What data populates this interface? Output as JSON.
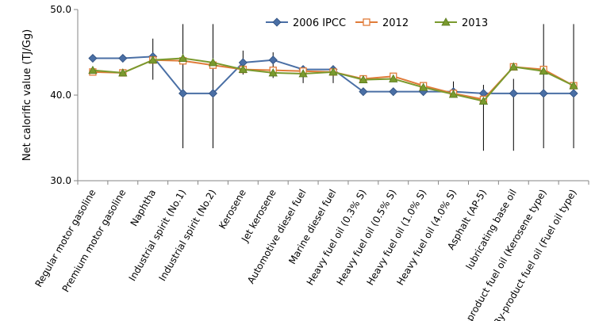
{
  "chart_data": {
    "type": "line",
    "title": "",
    "xlabel": "",
    "ylabel": "Net calorific value (TJ/Gg)",
    "ylim": [
      30.0,
      50.0
    ],
    "yticks": [
      "30.0",
      "40.0",
      "50.0"
    ],
    "ytick_values": [
      30,
      40,
      50
    ],
    "legend_position": "top",
    "categories": [
      "Regular motor gasoline",
      "Premium motor gasoline",
      "Naphtha",
      "Industrial spirit (No.1)",
      "Industrial spirit (No.2)",
      "Kerosene",
      "Jet kerosene",
      "Automotive diesel fuel",
      "Marine diesel fuel",
      "Heavy fuel oil (0.3% S)",
      "Heavy fuel oil (0.5% S)",
      "Heavy fuel oil (1.0% S)",
      "Heavy fuel oil (4.0% S)",
      "Asphalt (AP-5)",
      "lubricating base oil",
      "By-product fuel oil (Kerosene type)",
      "By-product fuel oil (Fuel oil type)"
    ],
    "series": [
      {
        "name": "2006 IPCC",
        "color": "#4a6fa5",
        "marker": "diamond",
        "values": [
          44.3,
          44.3,
          44.5,
          40.2,
          40.2,
          43.8,
          44.1,
          43.0,
          43.0,
          40.4,
          40.4,
          40.4,
          40.4,
          40.2,
          40.2,
          40.2,
          40.2
        ],
        "error_low": [
          43.9,
          null,
          41.8,
          33.8,
          33.8,
          42.4,
          42.0,
          null,
          null,
          null,
          40.0,
          null,
          null,
          33.5,
          33.5,
          33.8,
          33.8
        ],
        "error_high": [
          44.6,
          null,
          46.6,
          48.3,
          48.3,
          45.2,
          45.0,
          null,
          null,
          null,
          40.8,
          null,
          41.6,
          41.2,
          41.9,
          48.3,
          48.3
        ]
      },
      {
        "name": "2012",
        "color": "#e07b39",
        "marker": "square",
        "values": [
          42.7,
          42.6,
          44.1,
          44.0,
          43.5,
          43.0,
          42.9,
          42.8,
          42.7,
          41.9,
          42.2,
          41.1,
          40.2,
          39.5,
          43.3,
          43.0,
          41.1
        ],
        "error_low": [
          null,
          null,
          null,
          null,
          null,
          null,
          null,
          41.4,
          41.4,
          null,
          null,
          null,
          null,
          null,
          null,
          null,
          null
        ],
        "error_high": [
          null,
          null,
          null,
          null,
          null,
          null,
          null,
          null,
          null,
          null,
          null,
          null,
          null,
          null,
          null,
          null,
          null
        ]
      },
      {
        "name": "2013",
        "color": "#7a9a2e",
        "marker": "triangle",
        "values": [
          42.9,
          42.6,
          44.1,
          44.3,
          43.8,
          43.0,
          42.6,
          42.5,
          42.7,
          41.8,
          41.9,
          40.9,
          40.1,
          39.3,
          43.3,
          42.8,
          41.1
        ],
        "error_low": [
          null,
          null,
          null,
          null,
          null,
          null,
          null,
          null,
          null,
          null,
          null,
          null,
          null,
          null,
          null,
          null,
          null
        ],
        "error_high": [
          null,
          null,
          null,
          null,
          null,
          null,
          null,
          null,
          null,
          null,
          null,
          null,
          null,
          null,
          null,
          null,
          null
        ]
      }
    ]
  }
}
